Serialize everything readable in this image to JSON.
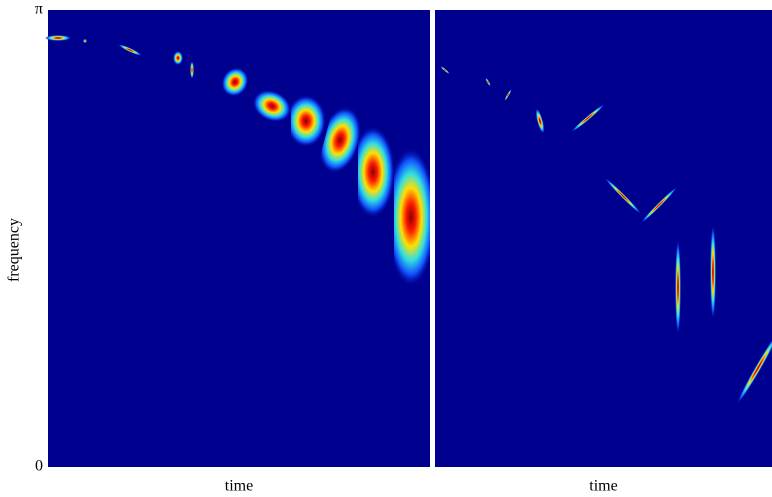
{
  "chart_data": [
    {
      "type": "heatmap",
      "x_label": "time",
      "y_label": "frequency",
      "ylim": [
        0,
        3.14159
      ],
      "yticks": [
        0,
        {
          "value": 3.14159,
          "label": "π"
        }
      ]
    },
    {
      "type": "heatmap",
      "x_label": "time"
    }
  ]
}
